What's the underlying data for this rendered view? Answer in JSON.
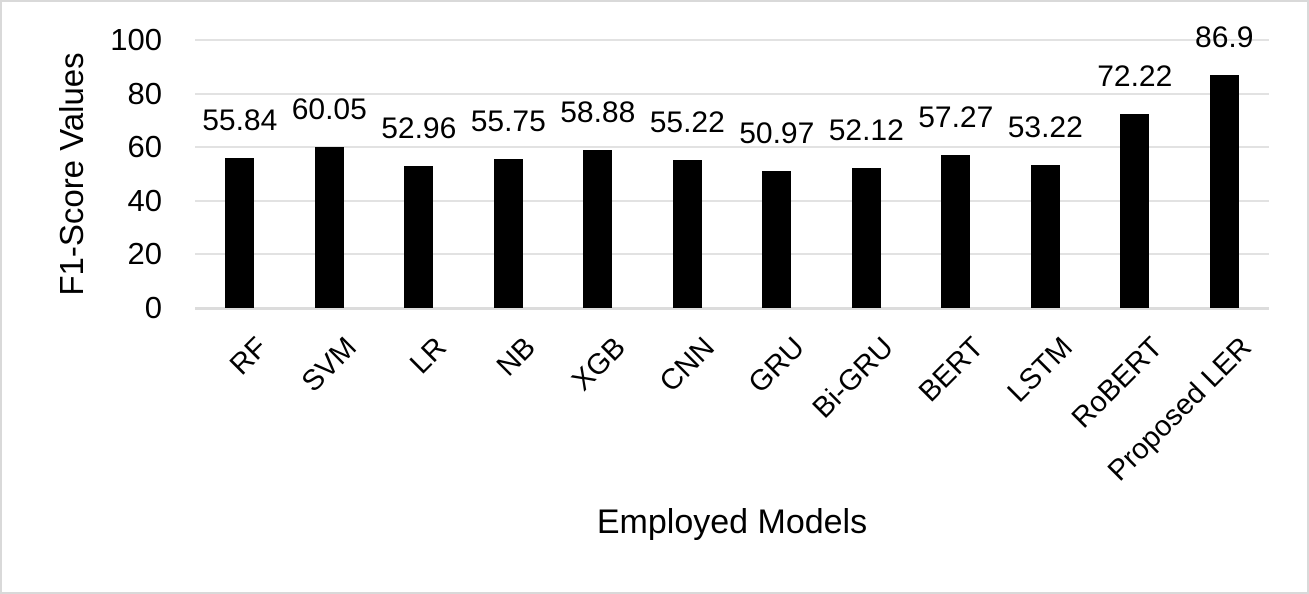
{
  "chart_data": {
    "type": "bar",
    "title": "",
    "xlabel": "Employed Models",
    "ylabel": "F1-Score Values",
    "categories": [
      "RF",
      "SVM",
      "LR",
      "NB",
      "XGB",
      "CNN",
      "GRU",
      "Bi-GRU",
      "BERT",
      "LSTM",
      "RoBERT",
      "Proposed LER"
    ],
    "values": [
      55.84,
      60.05,
      52.96,
      55.75,
      58.88,
      55.22,
      50.97,
      52.12,
      57.27,
      53.22,
      72.22,
      86.9
    ],
    "data_labels": [
      "55.84",
      "60.05",
      "52.96",
      "55.75",
      "58.88",
      "55.22",
      "50.97",
      "52.12",
      "57.27",
      "53.22",
      "72.22",
      "86.9"
    ],
    "ylim": [
      0,
      100
    ],
    "yticks": [
      0,
      20,
      40,
      60,
      80,
      100
    ],
    "ytick_labels": [
      "0",
      "20",
      "40",
      "60",
      "80",
      "100"
    ],
    "grid": "horizontal",
    "legend": "none",
    "bar_color": "#000000",
    "gridline_color": "#e2e2e2",
    "frame_border_color": "#d9d9d9",
    "text_color": "#000000"
  }
}
